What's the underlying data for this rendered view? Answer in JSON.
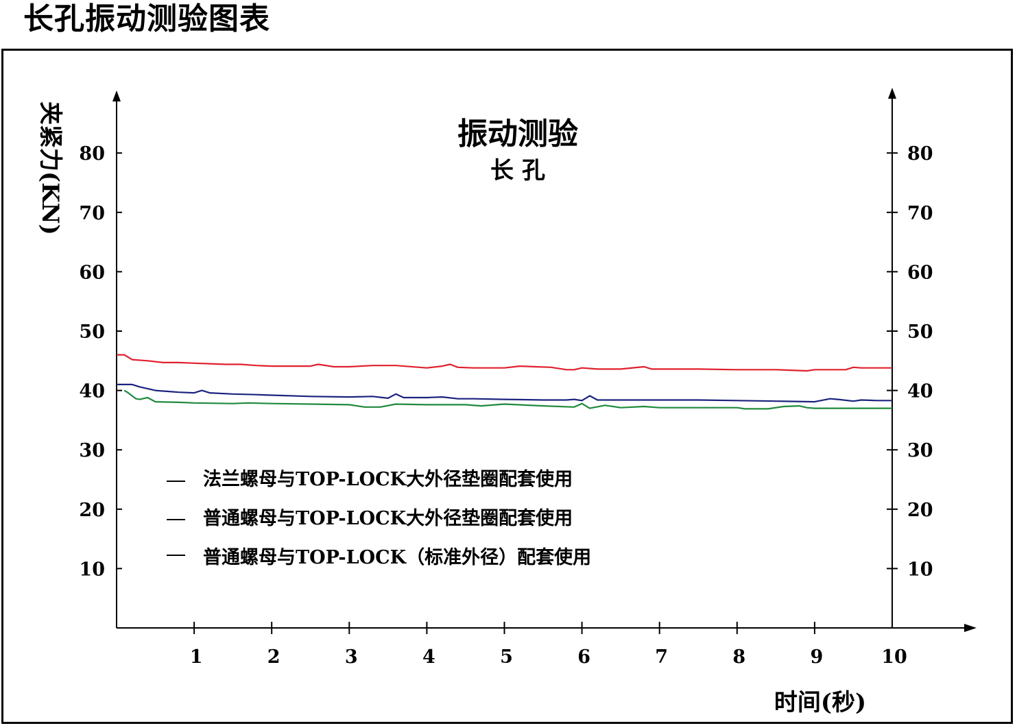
{
  "page": {
    "title": "长孔振动测验图表"
  },
  "chart_data": {
    "type": "line",
    "title": "振动测验",
    "subtitle": "长孔",
    "xlabel": "时间(秒)",
    "ylabel": "夹紧力(KN)",
    "xlim": [
      0,
      10
    ],
    "ylim": [
      0,
      90
    ],
    "x_ticks": [
      "1",
      "2",
      "3",
      "4",
      "5",
      "6",
      "7",
      "8",
      "9",
      "10"
    ],
    "y_ticks_left": [
      "10",
      "20",
      "30",
      "40",
      "50",
      "60",
      "70",
      "80"
    ],
    "y_ticks_right": [
      "10",
      "20",
      "30",
      "40",
      "50",
      "60",
      "70",
      "80"
    ],
    "grid": false,
    "legend_position": "lower-left",
    "series": [
      {
        "name": "法兰螺母与TOP-LOCK大外径垫圈配套使用",
        "color": "#e0202e",
        "x": [
          0,
          0.1,
          0.2,
          0.4,
          0.6,
          0.8,
          1.0,
          1.2,
          1.4,
          1.6,
          1.8,
          2.0,
          2.5,
          2.6,
          2.8,
          3.0,
          3.3,
          3.6,
          3.9,
          4.0,
          4.2,
          4.3,
          4.4,
          4.6,
          5.0,
          5.2,
          5.4,
          5.6,
          5.8,
          5.9,
          6.0,
          6.2,
          6.5,
          6.8,
          6.9,
          7.0,
          7.5,
          8.0,
          8.5,
          8.9,
          9.0,
          9.2,
          9.4,
          9.5,
          9.6,
          9.8,
          10.0
        ],
        "values": [
          46.0,
          46.0,
          45.2,
          45.0,
          44.7,
          44.7,
          44.6,
          44.5,
          44.4,
          44.4,
          44.2,
          44.1,
          44.1,
          44.4,
          44.0,
          44.0,
          44.2,
          44.2,
          43.9,
          43.8,
          44.1,
          44.4,
          43.9,
          43.8,
          43.8,
          44.1,
          44.0,
          43.9,
          43.5,
          43.5,
          43.8,
          43.6,
          43.6,
          44.0,
          43.6,
          43.6,
          43.6,
          43.5,
          43.5,
          43.3,
          43.5,
          43.5,
          43.5,
          43.9,
          43.8,
          43.8,
          43.8
        ]
      },
      {
        "name": "普通螺母与TOP-LOCK大外径垫圈配套使用",
        "color": "#1a237e",
        "x": [
          0,
          0.2,
          0.3,
          0.5,
          0.8,
          1.0,
          1.1,
          1.2,
          1.5,
          1.8,
          2.0,
          2.5,
          3.0,
          3.3,
          3.5,
          3.6,
          3.7,
          4.0,
          4.2,
          4.4,
          4.6,
          5.0,
          5.5,
          5.8,
          5.9,
          6.0,
          6.1,
          6.2,
          6.5,
          7.0,
          7.5,
          8.0,
          8.5,
          9.0,
          9.2,
          9.3,
          9.5,
          9.6,
          9.8,
          10.0
        ],
        "values": [
          41.0,
          41.0,
          40.6,
          40.0,
          39.7,
          39.6,
          40.0,
          39.6,
          39.4,
          39.3,
          39.2,
          39.0,
          38.9,
          39.0,
          38.7,
          39.4,
          38.8,
          38.8,
          38.9,
          38.6,
          38.6,
          38.5,
          38.4,
          38.4,
          38.5,
          38.3,
          39.1,
          38.4,
          38.4,
          38.4,
          38.4,
          38.3,
          38.2,
          38.1,
          38.6,
          38.5,
          38.2,
          38.4,
          38.3,
          38.3
        ]
      },
      {
        "name": "普通螺母与TOP-LOCK（标准外径）配套使用",
        "color": "#1e8a3c",
        "x": [
          0.1,
          0.15,
          0.25,
          0.3,
          0.4,
          0.5,
          0.8,
          1.0,
          1.5,
          1.7,
          2.0,
          2.5,
          3.0,
          3.2,
          3.4,
          3.6,
          4.0,
          4.5,
          4.7,
          5.0,
          5.5,
          5.9,
          6.0,
          6.1,
          6.3,
          6.5,
          6.8,
          7.0,
          7.5,
          8.0,
          8.1,
          8.4,
          8.6,
          8.8,
          8.9,
          9.0,
          9.5,
          10.0
        ],
        "values": [
          40.0,
          39.6,
          38.6,
          38.5,
          38.8,
          38.1,
          38.0,
          37.9,
          37.8,
          37.9,
          37.8,
          37.7,
          37.6,
          37.2,
          37.2,
          37.7,
          37.6,
          37.6,
          37.4,
          37.7,
          37.4,
          37.2,
          37.8,
          37.0,
          37.5,
          37.1,
          37.3,
          37.1,
          37.1,
          37.1,
          36.9,
          36.9,
          37.3,
          37.4,
          37.1,
          37.0,
          37.0,
          37.0
        ]
      }
    ]
  }
}
